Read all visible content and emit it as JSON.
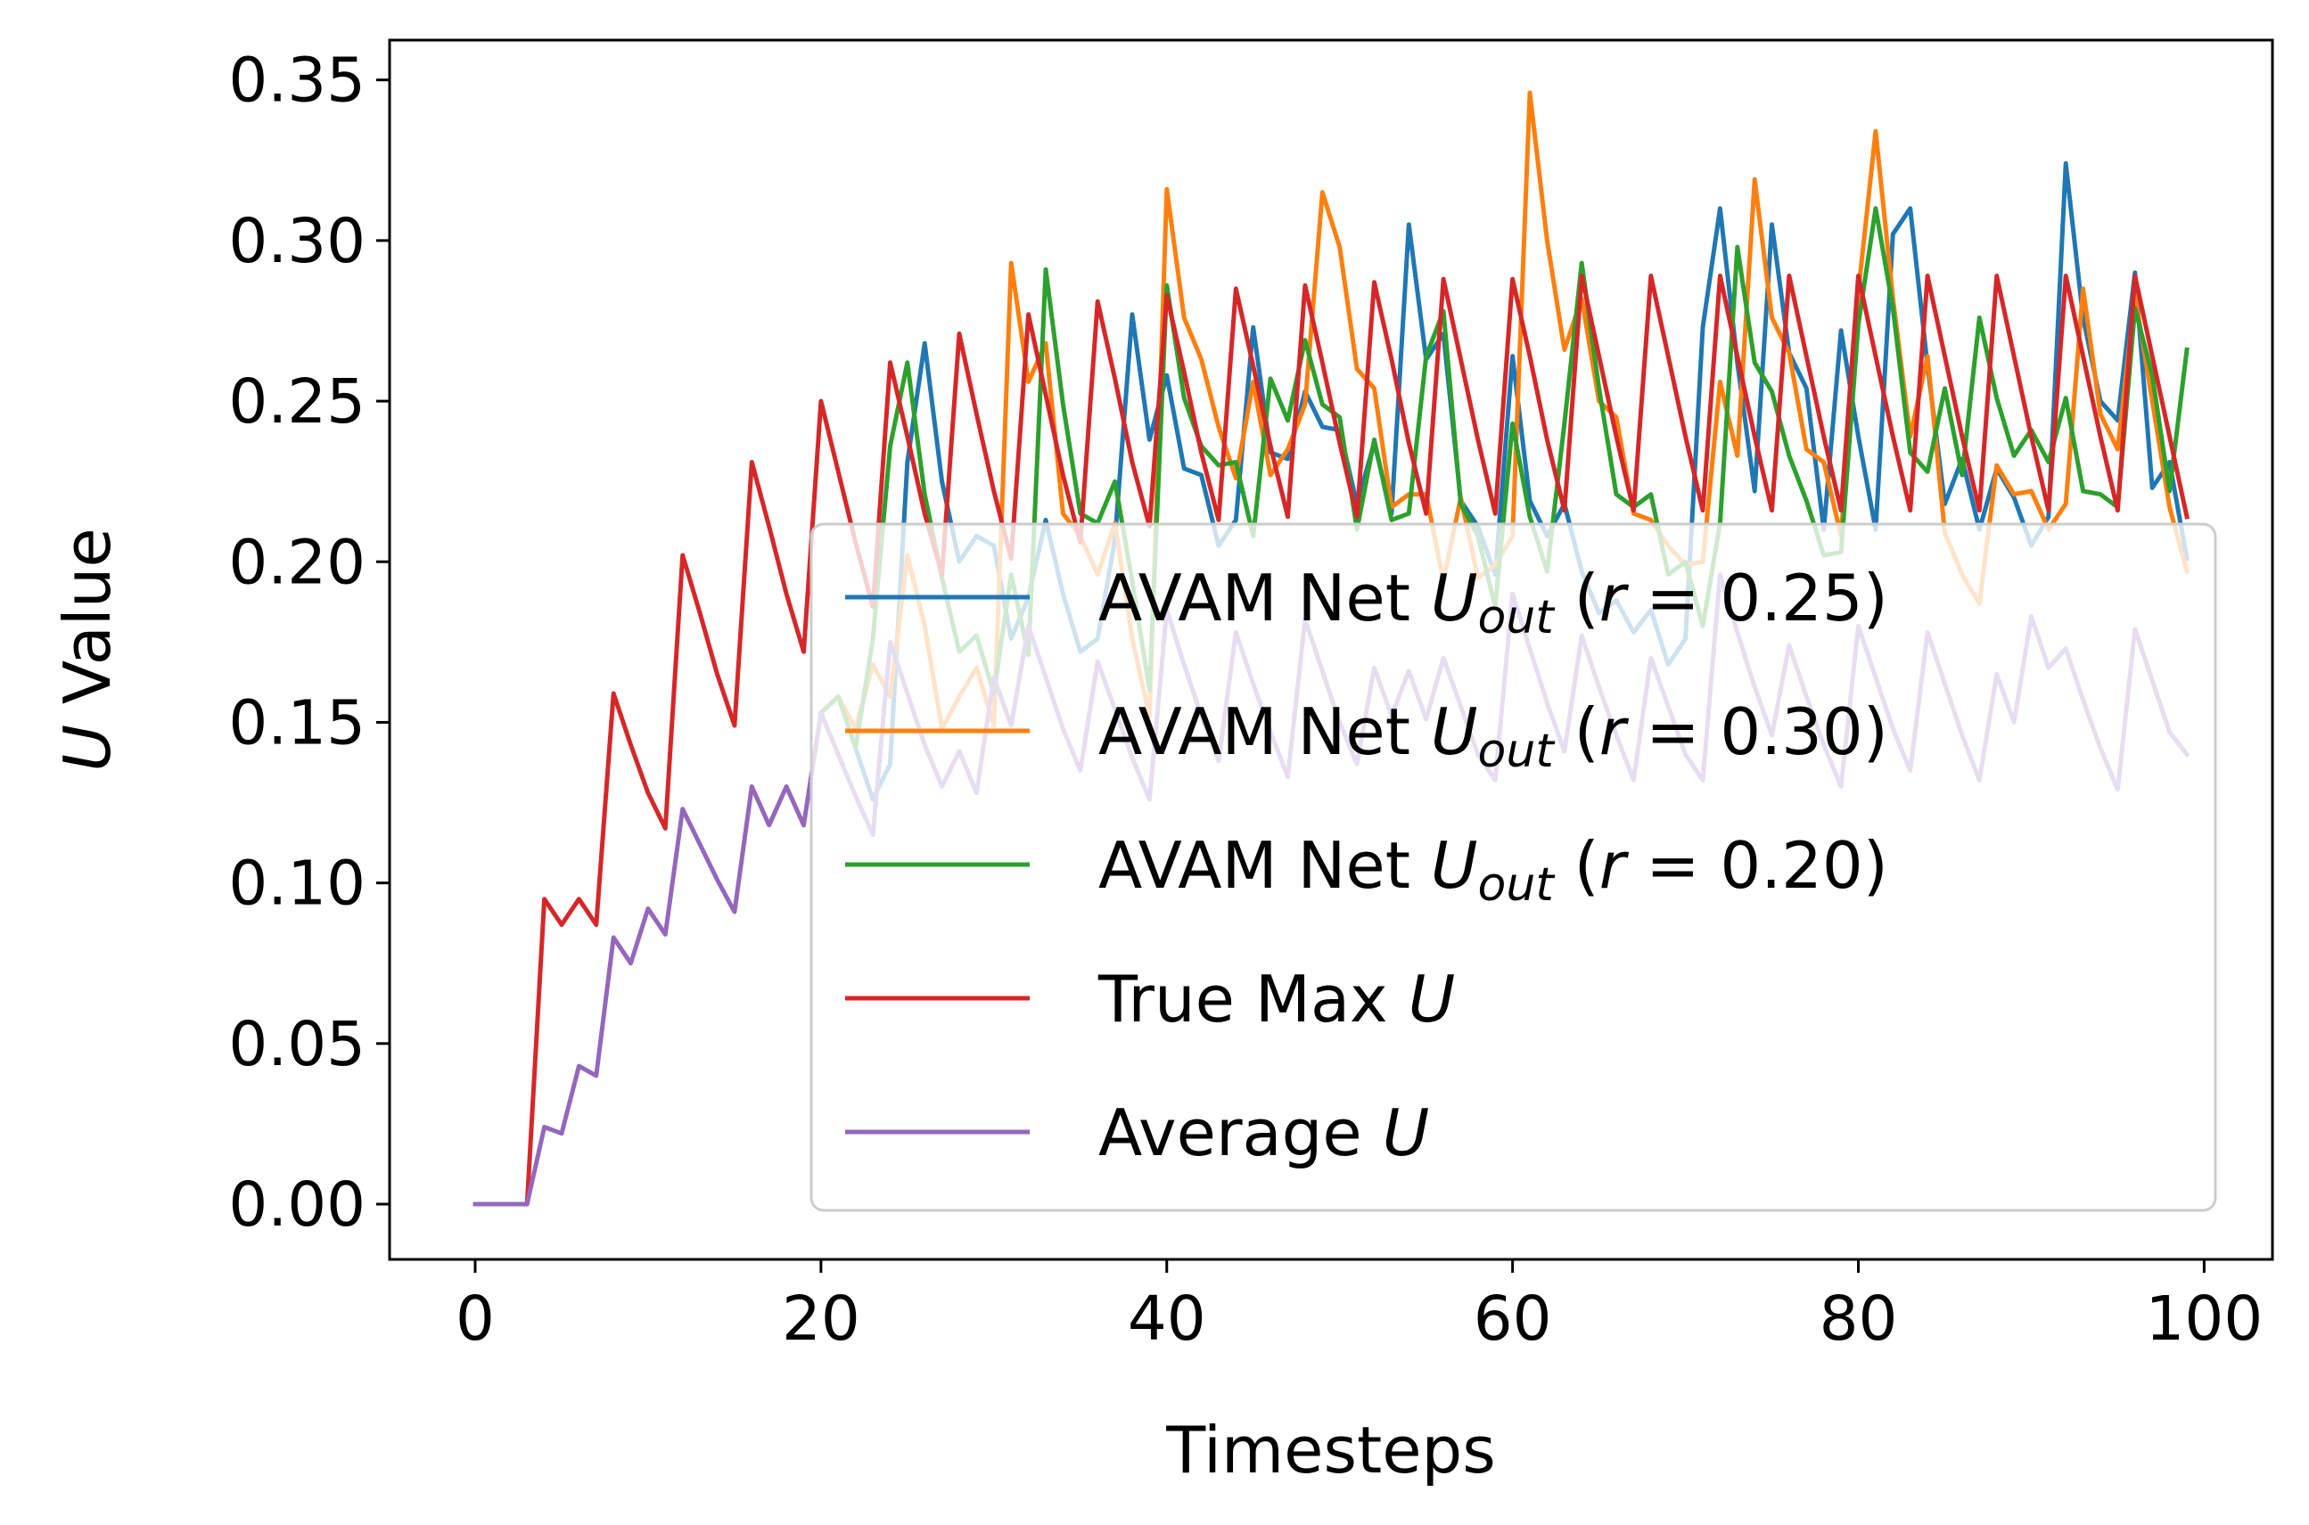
{
  "chart_data": {
    "type": "line",
    "xlabel": "Timesteps",
    "ylabel_italic": "U",
    "ylabel_rest": " Value",
    "xlim": [
      -4.95,
      103.95
    ],
    "ylim": [
      -0.0172,
      0.3624
    ],
    "xticks": [
      0,
      20,
      40,
      60,
      80,
      100
    ],
    "xtick_labels": [
      "0",
      "20",
      "40",
      "60",
      "80",
      "100"
    ],
    "yticks": [
      0.0,
      0.05,
      0.1,
      0.15,
      0.2,
      0.25,
      0.3,
      0.35
    ],
    "ytick_labels": [
      "0.00",
      "0.05",
      "0.10",
      "0.15",
      "0.20",
      "0.25",
      "0.30",
      "0.35"
    ],
    "legend_position": "lower-right",
    "colors": {
      "r025": "#1f77b4",
      "r030": "#ff7f0e",
      "r020": "#2ca02c",
      "max": "#d62728",
      "avg": "#9467bd"
    },
    "legend": [
      {
        "key": "r025",
        "prefix": "AVAM Net ",
        "var": "U",
        "sub": "out",
        "r_text": "r",
        "eq_text": " = 0.25)"
      },
      {
        "key": "r030",
        "prefix": "AVAM Net ",
        "var": "U",
        "sub": "out",
        "r_text": "r",
        "eq_text": " = 0.30)"
      },
      {
        "key": "r020",
        "prefix": "AVAM Net ",
        "var": "U",
        "sub": "out",
        "r_text": "r",
        "eq_text": " = 0.20)"
      },
      {
        "key": "max",
        "prefix": "True Max ",
        "var": "U"
      },
      {
        "key": "avg",
        "prefix": "Average ",
        "var": "U"
      }
    ],
    "series": [
      {
        "key": "r025",
        "x_start": 20,
        "values": [
          0.153,
          0.158,
          0.142,
          0.126,
          0.137,
          0.231,
          0.268,
          0.225,
          0.2,
          0.208,
          0.205,
          0.176,
          0.189,
          0.213,
          0.19,
          0.172,
          0.176,
          0.207,
          0.277,
          0.238,
          0.258,
          0.229,
          0.227,
          0.205,
          0.213,
          0.273,
          0.234,
          0.232,
          0.253,
          0.242,
          0.241,
          0.218,
          0.237,
          0.215,
          0.305,
          0.263,
          0.271,
          0.219,
          0.211,
          0.196,
          0.264,
          0.219,
          0.208,
          0.218,
          0.197,
          0.184,
          0.188,
          0.178,
          0.185,
          0.168,
          0.176,
          0.273,
          0.31,
          0.262,
          0.222,
          0.305,
          0.265,
          0.254,
          0.21,
          0.272,
          0.239,
          0.21,
          0.302,
          0.31,
          0.261,
          0.218,
          0.232,
          0.21,
          0.229,
          0.22,
          0.205,
          0.214,
          0.324,
          0.276,
          0.25,
          0.244,
          0.29,
          0.223,
          0.231,
          0.201
        ],
        "alpha_below": 0.215
      },
      {
        "key": "r030",
        "x_start": 20,
        "values": [
          0.153,
          0.158,
          0.148,
          0.168,
          0.158,
          0.202,
          0.18,
          0.148,
          0.158,
          0.167,
          0.149,
          0.293,
          0.256,
          0.268,
          0.215,
          0.208,
          0.196,
          0.212,
          0.176,
          0.152,
          0.316,
          0.276,
          0.263,
          0.242,
          0.226,
          0.256,
          0.227,
          0.235,
          0.249,
          0.315,
          0.298,
          0.26,
          0.254,
          0.217,
          0.221,
          0.221,
          0.194,
          0.22,
          0.195,
          0.199,
          0.208,
          0.346,
          0.3,
          0.266,
          0.282,
          0.25,
          0.245,
          0.215,
          0.213,
          0.205,
          0.199,
          0.2,
          0.256,
          0.233,
          0.319,
          0.276,
          0.265,
          0.235,
          0.231,
          0.208,
          0.284,
          0.334,
          0.282,
          0.239,
          0.264,
          0.209,
          0.196,
          0.187,
          0.23,
          0.221,
          0.222,
          0.21,
          0.218,
          0.285,
          0.246,
          0.235,
          0.283,
          0.25,
          0.217,
          0.197
        ],
        "alpha_below": 0.215
      },
      {
        "key": "r020",
        "x_start": 20,
        "values": [
          0.153,
          0.158,
          0.142,
          0.176,
          0.236,
          0.262,
          0.221,
          0.195,
          0.172,
          0.177,
          0.159,
          0.196,
          0.171,
          0.291,
          0.249,
          0.215,
          0.212,
          0.225,
          0.194,
          0.16,
          0.286,
          0.251,
          0.236,
          0.23,
          0.231,
          0.208,
          0.257,
          0.244,
          0.269,
          0.249,
          0.245,
          0.21,
          0.238,
          0.213,
          0.215,
          0.264,
          0.278,
          0.218,
          0.208,
          0.186,
          0.243,
          0.214,
          0.197,
          0.243,
          0.293,
          0.254,
          0.221,
          0.217,
          0.221,
          0.196,
          0.2,
          0.18,
          0.212,
          0.298,
          0.262,
          0.253,
          0.233,
          0.219,
          0.202,
          0.203,
          0.274,
          0.31,
          0.279,
          0.234,
          0.228,
          0.254,
          0.227,
          0.276,
          0.251,
          0.233,
          0.241,
          0.231,
          0.251,
          0.222,
          0.221,
          0.217,
          0.279,
          0.258,
          0.222,
          0.266
        ],
        "alpha_below": 0.215
      },
      {
        "key": "max",
        "x_start": 0,
        "values": [
          0.0,
          0.0,
          0.0,
          0.0,
          0.095,
          0.087,
          0.095,
          0.087,
          0.159,
          0.143,
          0.128,
          0.117,
          0.202,
          0.184,
          0.165,
          0.149,
          0.231,
          0.211,
          0.19,
          0.172,
          0.25,
          0.228,
          0.206,
          0.186,
          0.262,
          0.239,
          0.215,
          0.196,
          0.271,
          0.246,
          0.222,
          0.201,
          0.277,
          0.252,
          0.227,
          0.206,
          0.281,
          0.257,
          0.231,
          0.211,
          0.283,
          0.259,
          0.234,
          0.213,
          0.285,
          0.261,
          0.236,
          0.214,
          0.286,
          0.262,
          0.237,
          0.214,
          0.287,
          0.263,
          0.237,
          0.215,
          0.288,
          0.263,
          0.238,
          0.215,
          0.288,
          0.264,
          0.238,
          0.216,
          0.289,
          0.264,
          0.239,
          0.216,
          0.289,
          0.264,
          0.239,
          0.216,
          0.289,
          0.264,
          0.239,
          0.216,
          0.289,
          0.264,
          0.239,
          0.216,
          0.289,
          0.264,
          0.239,
          0.216,
          0.289,
          0.264,
          0.239,
          0.216,
          0.289,
          0.264,
          0.239,
          0.216,
          0.289,
          0.264,
          0.239,
          0.216,
          0.289,
          0.264,
          0.239,
          0.214
        ]
      },
      {
        "key": "avg",
        "x_start": 0,
        "values": [
          0.0,
          0.0,
          0.0,
          0.0,
          0.024,
          0.022,
          0.043,
          0.04,
          0.083,
          0.075,
          0.092,
          0.084,
          0.123,
          0.112,
          0.101,
          0.091,
          0.13,
          0.118,
          0.13,
          0.118,
          0.153,
          0.14,
          0.127,
          0.115,
          0.175,
          0.159,
          0.143,
          0.13,
          0.141,
          0.128,
          0.164,
          0.149,
          0.18,
          0.164,
          0.148,
          0.135,
          0.169,
          0.154,
          0.139,
          0.126,
          0.185,
          0.168,
          0.152,
          0.138,
          0.178,
          0.162,
          0.147,
          0.133,
          0.182,
          0.166,
          0.15,
          0.137,
          0.167,
          0.152,
          0.166,
          0.151,
          0.17,
          0.155,
          0.14,
          0.132,
          0.19,
          0.173,
          0.156,
          0.141,
          0.177,
          0.161,
          0.146,
          0.132,
          0.17,
          0.155,
          0.14,
          0.132,
          0.196,
          0.178,
          0.161,
          0.146,
          0.174,
          0.158,
          0.143,
          0.13,
          0.18,
          0.164,
          0.148,
          0.135,
          0.178,
          0.162,
          0.146,
          0.132,
          0.165,
          0.15,
          0.183,
          0.167,
          0.173,
          0.157,
          0.142,
          0.129,
          0.179,
          0.163,
          0.147,
          0.14
        ],
        "alpha_below": 0.215
      }
    ]
  }
}
